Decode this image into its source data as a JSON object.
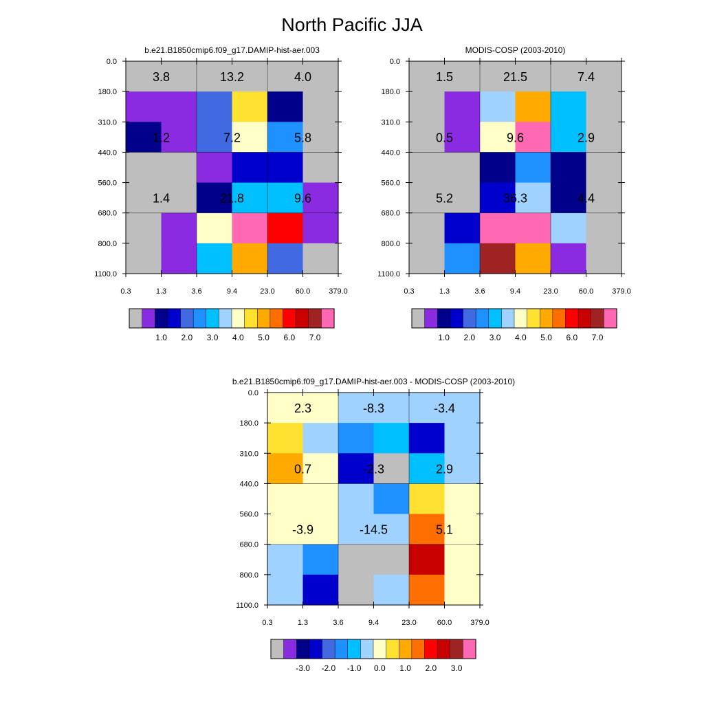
{
  "figure": {
    "title": "North Pacific JJA"
  },
  "colors": {
    "model_obs_scale": [
      "#bebebe",
      "#8a2be2",
      "#00008b",
      "#0000cd",
      "#4169e1",
      "#1e90ff",
      "#00bfff",
      "#a0d2ff",
      "#ffffc8",
      "#ffe132",
      "#ffaa00",
      "#ff6e00",
      "#ff0000",
      "#c80000",
      "#a02323",
      "#ff69b4"
    ],
    "difference_scale": [
      "#bebebe",
      "#8a2be2",
      "#00008b",
      "#0000cd",
      "#4169e1",
      "#1e90ff",
      "#00bfff",
      "#a0d2ff",
      "#ffffc8",
      "#ffe132",
      "#ffaa00",
      "#ff6e00",
      "#ff0000",
      "#c80000",
      "#a02323",
      "#ff69b4"
    ]
  },
  "chart_data": [
    {
      "type": "heatmap",
      "title": "b.e21.B1850cmip6.f09_g17.DAMIP-hist-aer.003",
      "x_ticks": [
        "0.3",
        "1.3",
        "3.6",
        "9.4",
        "23.0",
        "60.0",
        "379.0"
      ],
      "y_ticks": [
        "0.0",
        "180.0",
        "310.0",
        "440.0",
        "560.0",
        "680.0",
        "800.0",
        "1100.0"
      ],
      "colorbar_labels": [
        "1.0",
        "2.0",
        "3.0",
        "4.0",
        "5.0",
        "6.0",
        "7.0"
      ],
      "cells": [
        [
          0,
          0,
          0,
          0,
          0,
          0
        ],
        [
          1,
          1,
          4,
          9,
          2,
          0
        ],
        [
          2,
          1,
          4,
          8,
          5,
          0
        ],
        [
          0,
          0,
          1,
          3,
          3,
          0
        ],
        [
          0,
          0,
          2,
          6,
          6,
          1
        ],
        [
          0,
          1,
          8,
          15,
          12,
          1
        ],
        [
          0,
          1,
          6,
          10,
          4,
          0
        ]
      ],
      "annotations": [
        {
          "row": 0,
          "col": 0,
          "text": "3.8"
        },
        {
          "row": 0,
          "col": 1,
          "text": "13.2"
        },
        {
          "row": 0,
          "col": 2,
          "text": "4.0"
        },
        {
          "row": 1,
          "col": 0,
          "text": "1.2"
        },
        {
          "row": 1,
          "col": 1,
          "text": "7.2"
        },
        {
          "row": 1,
          "col": 2,
          "text": "5.8"
        },
        {
          "row": 2,
          "col": 0,
          "text": "1.4"
        },
        {
          "row": 2,
          "col": 1,
          "text": "21.8"
        },
        {
          "row": 2,
          "col": 2,
          "text": "9.6"
        }
      ]
    },
    {
      "type": "heatmap",
      "title": "MODIS-COSP (2003-2010)",
      "x_ticks": [
        "0.3",
        "1.3",
        "3.6",
        "9.4",
        "23.0",
        "60.0",
        "379.0"
      ],
      "y_ticks": [
        "0.0",
        "180.0",
        "310.0",
        "440.0",
        "560.0",
        "680.0",
        "800.0",
        "1100.0"
      ],
      "colorbar_labels": [
        "1.0",
        "2.0",
        "3.0",
        "4.0",
        "5.0",
        "6.0",
        "7.0"
      ],
      "cells": [
        [
          0,
          0,
          0,
          0,
          0,
          0
        ],
        [
          0,
          1,
          7,
          10,
          6,
          0
        ],
        [
          0,
          1,
          8,
          15,
          6,
          0
        ],
        [
          0,
          0,
          2,
          5,
          2,
          0
        ],
        [
          0,
          0,
          3,
          7,
          2,
          0
        ],
        [
          0,
          3,
          15,
          15,
          7,
          0
        ],
        [
          0,
          5,
          14,
          10,
          1,
          0
        ]
      ],
      "annotations": [
        {
          "row": 0,
          "col": 0,
          "text": "1.5"
        },
        {
          "row": 0,
          "col": 1,
          "text": "21.5"
        },
        {
          "row": 0,
          "col": 2,
          "text": "7.4"
        },
        {
          "row": 1,
          "col": 0,
          "text": "0.5"
        },
        {
          "row": 1,
          "col": 1,
          "text": "9.6"
        },
        {
          "row": 1,
          "col": 2,
          "text": "2.9"
        },
        {
          "row": 2,
          "col": 0,
          "text": "5.2"
        },
        {
          "row": 2,
          "col": 1,
          "text": "36.3"
        },
        {
          "row": 2,
          "col": 2,
          "text": "4.4"
        }
      ]
    },
    {
      "type": "heatmap",
      "title": "b.e21.B1850cmip6.f09_g17.DAMIP-hist-aer.003 - MODIS-COSP (2003-2010)",
      "x_ticks": [
        "0.3",
        "1.3",
        "3.6",
        "9.4",
        "23.0",
        "60.0",
        "379.0"
      ],
      "y_ticks": [
        "0.0",
        "180.0",
        "310.0",
        "440.0",
        "560.0",
        "680.0",
        "800.0",
        "1100.0"
      ],
      "colorbar_labels": [
        "-3.0",
        "-2.0",
        "-1.0",
        "0.0",
        "1.0",
        "2.0",
        "3.0"
      ],
      "cells": [
        [
          8,
          8,
          7,
          7,
          7,
          7
        ],
        [
          9,
          7,
          5,
          6,
          3,
          7
        ],
        [
          10,
          8,
          3,
          0,
          6,
          7
        ],
        [
          8,
          8,
          7,
          5,
          9,
          8
        ],
        [
          8,
          8,
          7,
          7,
          11,
          8
        ],
        [
          7,
          5,
          0,
          0,
          13,
          8
        ],
        [
          7,
          3,
          0,
          7,
          11,
          8
        ]
      ],
      "annotations": [
        {
          "row": 0,
          "col": 0,
          "text": "2.3"
        },
        {
          "row": 0,
          "col": 1,
          "text": "-8.3"
        },
        {
          "row": 0,
          "col": 2,
          "text": "-3.4"
        },
        {
          "row": 1,
          "col": 0,
          "text": "0.7"
        },
        {
          "row": 1,
          "col": 1,
          "text": "-2.3"
        },
        {
          "row": 1,
          "col": 2,
          "text": "2.9"
        },
        {
          "row": 2,
          "col": 0,
          "text": "-3.9"
        },
        {
          "row": 2,
          "col": 1,
          "text": "-14.5"
        },
        {
          "row": 2,
          "col": 2,
          "text": "5.1"
        }
      ]
    }
  ]
}
